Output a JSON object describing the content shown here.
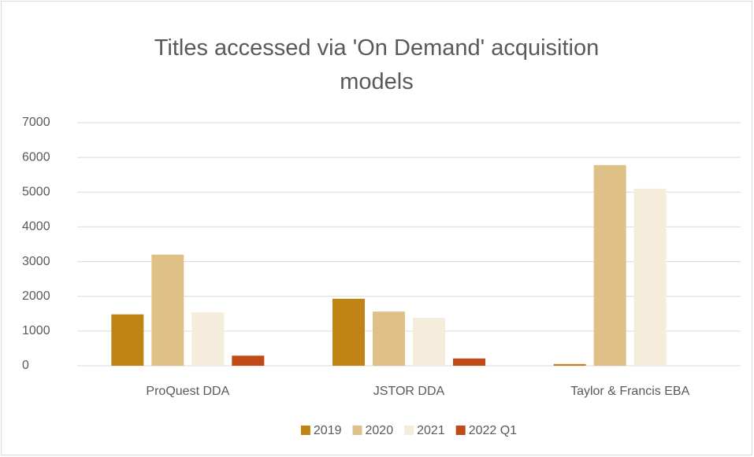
{
  "chart_data": {
    "type": "bar",
    "title": "Titles accessed via 'On Demand' acquisition models",
    "categories": [
      "ProQuest DDA",
      "JSTOR DDA",
      "Taylor & Francis EBA"
    ],
    "series": [
      {
        "name": "2019",
        "color": "#bf8415",
        "values": [
          1480,
          1930,
          50
        ]
      },
      {
        "name": "2020",
        "color": "#dfc087",
        "values": [
          3200,
          1560,
          5780
        ]
      },
      {
        "name": "2021",
        "color": "#f5ecdc",
        "values": [
          1540,
          1380,
          5100
        ]
      },
      {
        "name": "2022 Q1",
        "color": "#c04b16",
        "values": [
          290,
          210,
          0
        ]
      }
    ],
    "ylim": [
      0,
      7000
    ],
    "yticks": [
      0,
      1000,
      2000,
      3000,
      4000,
      5000,
      6000,
      7000
    ],
    "grid": true,
    "legend": "bottom"
  }
}
